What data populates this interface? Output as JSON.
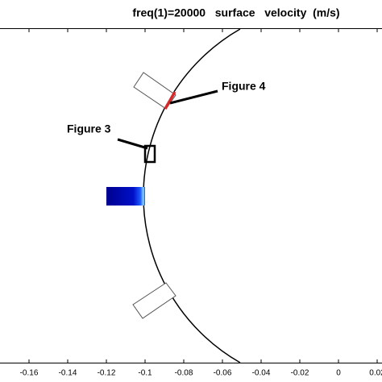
{
  "chart_data": {
    "type": "geometry",
    "title": "freq(1)=20000   surface   velocity  (m/s)",
    "annotations": [
      "Figure 4",
      "Figure 3"
    ],
    "xlim": [
      -0.175,
      0.0225
    ],
    "xticks": [
      -0.16,
      -0.14,
      -0.12,
      -0.1,
      -0.08,
      -0.06,
      -0.04,
      -0.02,
      0,
      0.02
    ]
  }
}
